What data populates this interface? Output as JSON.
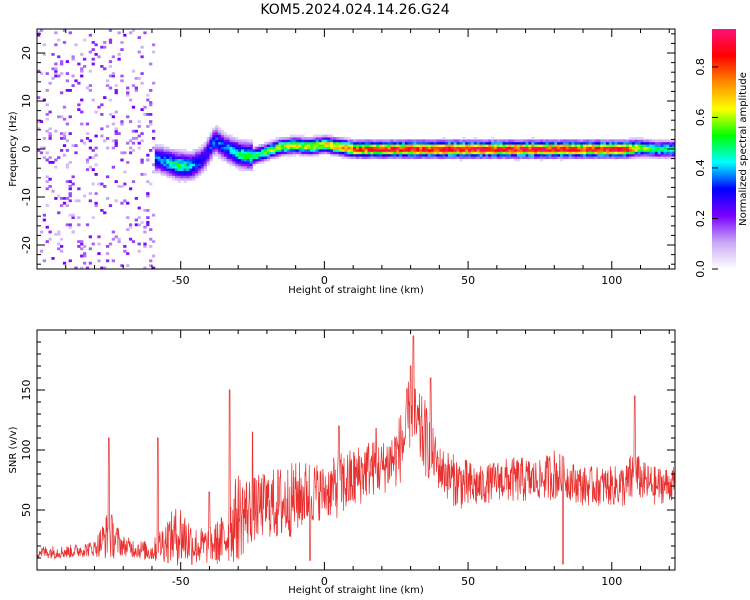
{
  "title": "KOM5.2024.024.14.26.G24",
  "palette": {
    "snr_line": "#e8302f",
    "colormap": [
      "#ffffff",
      "#c9a8f5",
      "#7a00ff",
      "#0000ff",
      "#00ffff",
      "#00ff00",
      "#ffff00",
      "#ff8800",
      "#ff0000",
      "#ff1177"
    ]
  },
  "chart_data": [
    {
      "type": "heatmap",
      "xlabel": "Height of straight line (km)",
      "ylabel": "Frequency (Hz)",
      "xlim": [
        -100,
        122
      ],
      "ylim": [
        -25,
        25
      ],
      "xticks": [
        -50,
        0,
        50,
        100
      ],
      "yticks": [
        -20,
        -10,
        0,
        10,
        20
      ],
      "colorbar": {
        "label": "Normalized spectral amplitude",
        "range": [
          0,
          0.95
        ],
        "ticks": [
          0.0,
          0.2,
          0.4,
          0.6,
          0.8
        ]
      },
      "ridge": {
        "x": [
          -58,
          -53,
          -50,
          -46,
          -42,
          -38,
          -35,
          -30,
          -25,
          -20,
          -15,
          -10,
          -5,
          0,
          5,
          10,
          20,
          30,
          40,
          50,
          60,
          70,
          80,
          90,
          100,
          105,
          110,
          115,
          122
        ],
        "frequency": [
          -2,
          -3,
          -3.5,
          -3.5,
          -2,
          2,
          0.5,
          -1,
          -1.5,
          -0.5,
          0.5,
          0.8,
          0.5,
          1,
          0.5,
          0,
          0,
          0,
          0,
          0,
          0,
          0,
          0,
          0,
          0,
          0,
          0.3,
          0,
          0
        ],
        "amplitude": [
          0.35,
          0.45,
          0.5,
          0.4,
          0.3,
          0.35,
          0.35,
          0.45,
          0.5,
          0.55,
          0.6,
          0.62,
          0.6,
          0.65,
          0.7,
          0.78,
          0.85,
          0.88,
          0.9,
          0.9,
          0.88,
          0.9,
          0.9,
          0.85,
          0.9,
          0.85,
          0.6,
          0.5,
          0.5
        ]
      }
    },
    {
      "type": "line",
      "xlabel": "Height of straight line (km)",
      "ylabel": "SNR (v/v)",
      "xlim": [
        -100,
        122
      ],
      "ylim": [
        0,
        200
      ],
      "xticks": [
        -50,
        0,
        50,
        100
      ],
      "yticks": [
        50,
        100,
        150
      ],
      "series": [
        {
          "x": [
            -100,
            -90,
            -80,
            -75,
            -70,
            -60,
            -55,
            -50,
            -45,
            -40,
            -35,
            -30,
            -25,
            -20,
            -15,
            -10,
            -5,
            0,
            5,
            10,
            15,
            20,
            25,
            28,
            30,
            32,
            35,
            38,
            40,
            45,
            50,
            55,
            60,
            65,
            70,
            75,
            80,
            85,
            90,
            95,
            100,
            105,
            108,
            110,
            115,
            122
          ],
          "y": [
            15,
            15,
            18,
            30,
            20,
            15,
            25,
            30,
            20,
            20,
            25,
            45,
            50,
            55,
            55,
            60,
            65,
            65,
            70,
            75,
            85,
            85,
            95,
            110,
            135,
            120,
            110,
            95,
            85,
            75,
            70,
            70,
            75,
            75,
            75,
            75,
            80,
            75,
            70,
            70,
            70,
            70,
            80,
            75,
            70,
            72
          ],
          "amplitude": [
            10,
            10,
            12,
            40,
            15,
            15,
            35,
            50,
            30,
            28,
            40,
            70,
            50,
            50,
            60,
            55,
            50,
            40,
            50,
            50,
            45,
            40,
            50,
            60,
            60,
            55,
            60,
            40,
            35,
            40,
            40,
            30,
            30,
            35,
            35,
            30,
            40,
            30,
            30,
            30,
            30,
            35,
            45,
            30,
            30,
            25
          ],
          "peaks": [
            [
              31,
              195
            ],
            [
              30,
              170
            ],
            [
              37,
              160
            ],
            [
              -33,
              150
            ],
            [
              108,
              145
            ],
            [
              -75,
              110
            ],
            [
              -58,
              110
            ],
            [
              -25,
              115
            ],
            [
              5,
              120
            ],
            [
              18,
              118
            ],
            [
              -40,
              65
            ],
            [
              -5,
              8
            ],
            [
              83,
              5
            ]
          ]
        }
      ]
    }
  ]
}
